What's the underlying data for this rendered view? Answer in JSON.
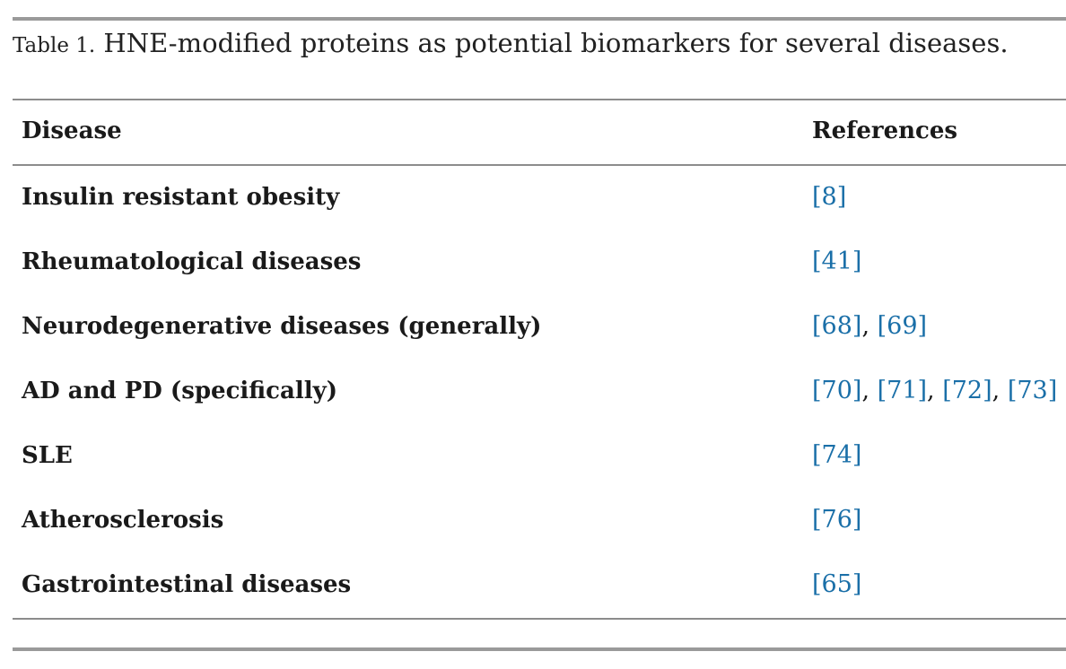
{
  "table": {
    "caption_label": "Table 1.",
    "caption_text": " HNE-modified proteins as potential biomarkers for several diseases.",
    "headers": {
      "disease": "Disease",
      "references": "References"
    },
    "rows": [
      {
        "disease": "Insulin resistant obesity",
        "refs": [
          "[8]"
        ]
      },
      {
        "disease": "Rheumatological diseases",
        "refs": [
          "[41]"
        ]
      },
      {
        "disease": "Neurodegenerative diseases (generally)",
        "refs": [
          "[68]",
          "[69]"
        ]
      },
      {
        "disease": "AD and PD (specifically)",
        "refs": [
          "[70]",
          "[71]",
          "[72]",
          "[73]"
        ]
      },
      {
        "disease": "SLE",
        "refs": [
          "[74]"
        ]
      },
      {
        "disease": "Atherosclerosis",
        "refs": [
          "[76]"
        ]
      },
      {
        "disease": "Gastrointestinal diseases",
        "refs": [
          "[65]"
        ]
      }
    ],
    "ref_separator": ", "
  },
  "colors": {
    "reference_link": "#1a6fa8",
    "rule": "#9a9a9a"
  }
}
